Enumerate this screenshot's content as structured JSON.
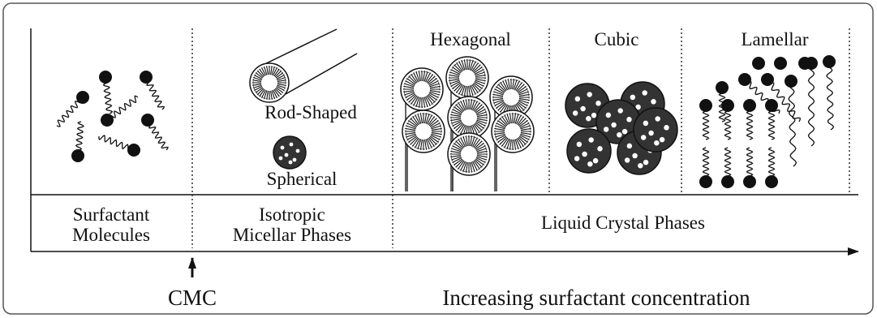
{
  "phase_labels": {
    "hexagonal": "Hexagonal",
    "cubic": "Cubic",
    "lamellar": "Lamellar"
  },
  "micelle_labels": {
    "rod": "Rod-Shaped",
    "sphere": "Spherical"
  },
  "regions": [
    {
      "lines": [
        "Surfactant",
        "Molecules"
      ]
    },
    {
      "lines": [
        "Isotropic",
        "Micellar Phases"
      ]
    },
    {
      "lines": [
        "Liquid Crystal Phases"
      ]
    }
  ],
  "cmc_label": "CMC",
  "axis_label": "Increasing surfactant concentration"
}
